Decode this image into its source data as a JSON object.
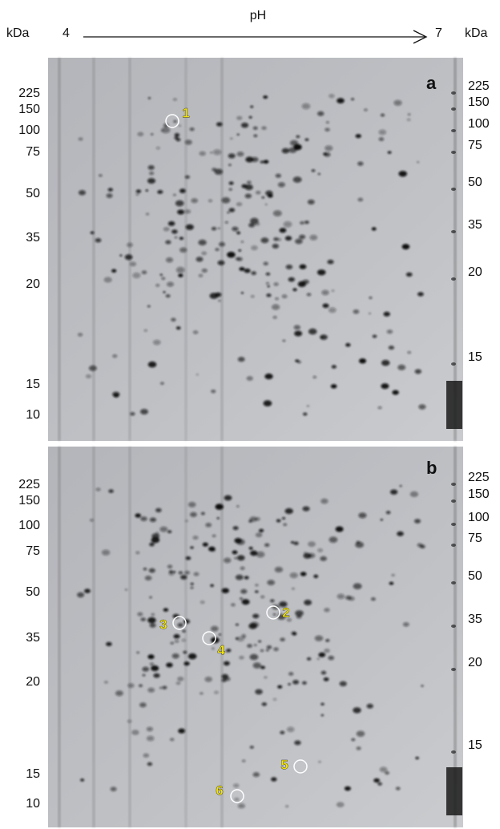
{
  "header": {
    "left_unit": "kDa",
    "ph_start": "4",
    "axis_label": "pH",
    "ph_end": "7",
    "right_unit": "kDa"
  },
  "panels": [
    {
      "label": "a",
      "left_markers": [
        "225",
        "150",
        "100",
        "75",
        "50",
        "35",
        "20",
        "15",
        "10"
      ],
      "right_markers": [
        "225",
        "150",
        "100",
        "75",
        "50",
        "35",
        "20",
        "15"
      ],
      "spots": [
        "1"
      ]
    },
    {
      "label": "b",
      "left_markers": [
        "225",
        "150",
        "100",
        "75",
        "50",
        "35",
        "20",
        "15",
        "10"
      ],
      "right_markers": [
        "225",
        "150",
        "100",
        "75",
        "50",
        "35",
        "20",
        "15"
      ],
      "spots": [
        "2",
        "3",
        "4",
        "5",
        "6"
      ]
    }
  ]
}
